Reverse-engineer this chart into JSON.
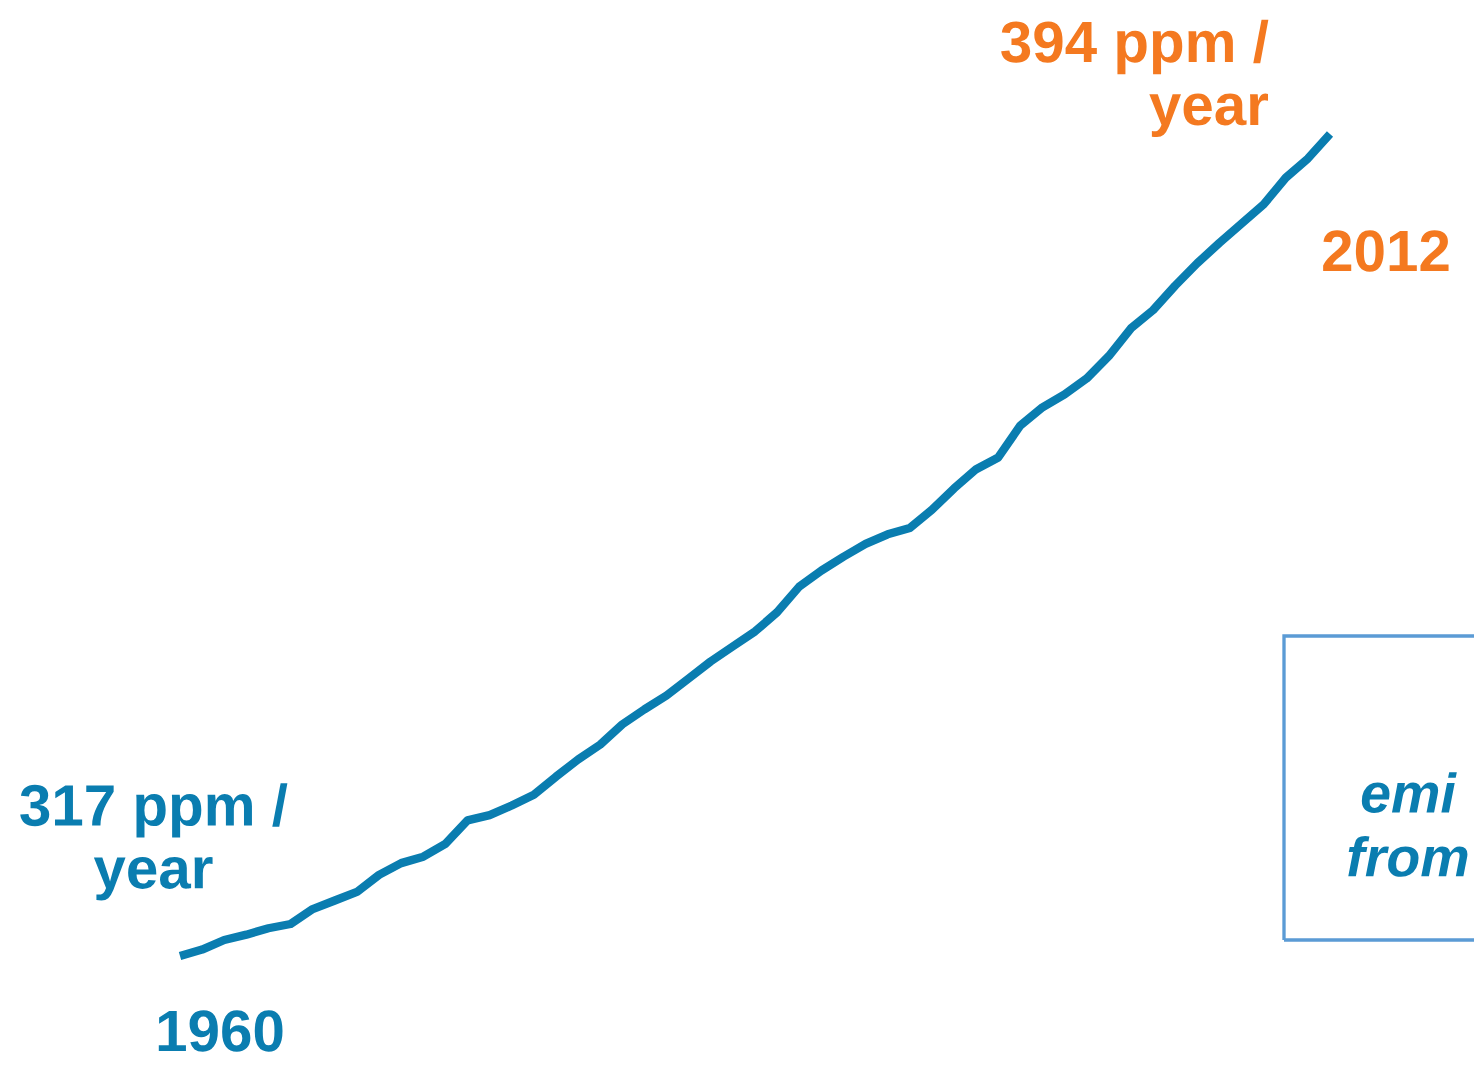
{
  "chart_data": {
    "type": "line",
    "categories": [
      null,
      null,
      null,
      null,
      null,
      null,
      null,
      null,
      null,
      null,
      null,
      null,
      null,
      null,
      null,
      null,
      null,
      null,
      null,
      null,
      null,
      null,
      null,
      null,
      null,
      null,
      null,
      null,
      null,
      null,
      null,
      null,
      null,
      null,
      null,
      null,
      null,
      null,
      null,
      null,
      null,
      null,
      null,
      null,
      null,
      null,
      null,
      null,
      null,
      null,
      null,
      null,
      null
    ],
    "series": [
      {
        "color": "#0a7db0",
        "values": [
          317,
          317.6,
          318.5,
          319.0,
          319.6,
          320.0,
          321.4,
          322.2,
          323.0,
          324.6,
          325.7,
          326.3,
          327.5,
          329.7,
          330.2,
          331.1,
          332.1,
          333.8,
          335.4,
          336.8,
          338.7,
          340.1,
          341.4,
          343.0,
          344.6,
          346.0,
          347.4,
          349.2,
          351.6,
          353.1,
          354.4,
          355.6,
          356.5,
          357.1,
          358.8,
          360.8,
          362.6,
          363.7,
          366.7,
          368.4,
          369.6,
          371.1,
          373.2,
          375.8,
          377.5,
          379.8,
          381.9,
          383.8,
          385.6,
          387.4,
          389.9,
          391.7,
          394
        ],
        "value_labels": [
          "317 ppm /\nyear",
          null,
          null,
          null,
          null,
          null,
          null,
          null,
          null,
          null,
          null,
          null,
          null,
          null,
          null,
          null,
          null,
          null,
          null,
          null,
          null,
          null,
          null,
          null,
          null,
          null,
          null,
          null,
          null,
          null,
          null,
          null,
          null,
          null,
          null,
          null,
          null,
          null,
          null,
          null,
          null,
          null,
          null,
          null,
          null,
          null,
          null,
          null,
          null,
          null,
          null,
          null,
          "394 ppm /\nyear"
        ]
      }
    ],
    "tick_labels": false,
    "marker": "none",
    "line_style": "solid",
    "annotations": [
      "1960",
      "2012",
      "emi\nfrom"
    ]
  }
}
